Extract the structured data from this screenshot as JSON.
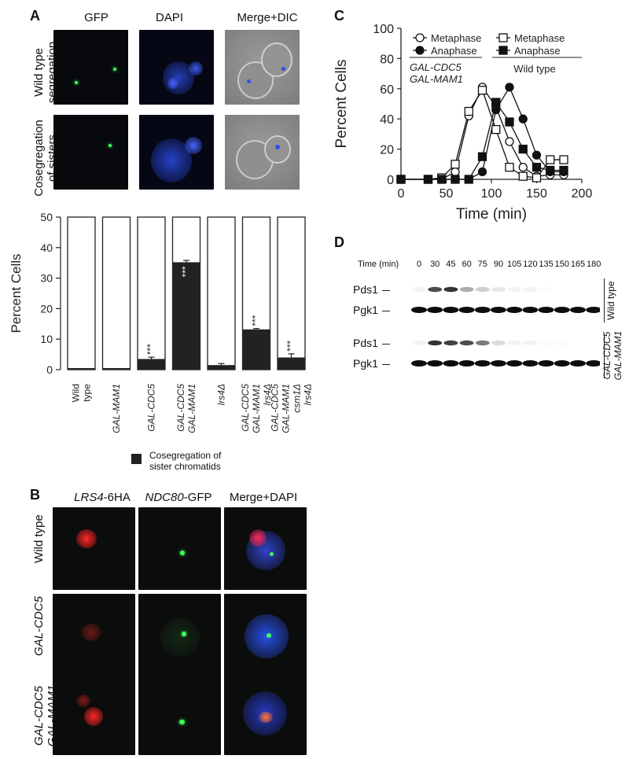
{
  "panel_a": {
    "label": "A",
    "columns": [
      "GFP",
      "DAPI",
      "Merge+DIC"
    ],
    "rows": [
      {
        "line1": "Wild type",
        "line2": "segregation"
      },
      {
        "line1": "Cosegregation",
        "line2": "of sisters"
      }
    ],
    "ylabel": "Percent Cells",
    "yticks": [
      "0",
      "10",
      "20",
      "30",
      "40",
      "50"
    ],
    "significance": "***",
    "legend_label_1": "Cosegregation of",
    "legend_label_2": "sister chromatids"
  },
  "panel_b": {
    "label": "B",
    "columns": [
      {
        "gene": "LRS4",
        "tag": "-6HA"
      },
      {
        "gene": "NDC80",
        "tag": "-GFP"
      },
      {
        "gene": "",
        "tag": "Merge+DAPI"
      }
    ],
    "rows": [
      {
        "line1": "Wild type",
        "line2": ""
      },
      {
        "line1": "GAL-CDC5",
        "line2": ""
      },
      {
        "line1": "GAL-CDC5",
        "line2": "GAL-MAM1"
      }
    ]
  },
  "panel_c": {
    "label": "C",
    "ylabel": "Percent Cells",
    "xlabel": "Time (min)",
    "legend": {
      "left_meta": "Metaphase",
      "left_ana": "Anaphase",
      "left_group_1": "GAL-CDC5",
      "left_group_2": "GAL-MAM1",
      "right_meta": "Metaphase",
      "right_ana": "Anaphase",
      "right_group": "Wild type"
    }
  },
  "panel_d": {
    "label": "D",
    "time_label": "Time (min)",
    "times": [
      "0",
      "30",
      "45",
      "60",
      "75",
      "90",
      "105",
      "120",
      "135",
      "150",
      "165",
      "180"
    ],
    "blot_labels": [
      "Pds1",
      "Pgk1",
      "Pds1",
      "Pgk1"
    ],
    "group_top": "Wild type",
    "group_bottom_1": "GAL-CDC5",
    "group_bottom_2": "GAL-MAM1"
  },
  "chart_data": [
    {
      "type": "bar",
      "stacked": true,
      "categories": [
        "Wild type",
        "GAL-MAM1",
        "GAL-CDC5",
        "GAL-CDC5 GAL-MAM1",
        "lrs4Δ",
        "GAL-CDC5 GAL-MAM1 lrs4Δ",
        "GAL-CDC5 GAL-MAM1 csm1Δ lrs4Δ"
      ],
      "series": [
        {
          "name": "Cosegregation of sister chromatids",
          "values": [
            0,
            0,
            3.5,
            35.2,
            1.5,
            13.2,
            4.0
          ]
        }
      ],
      "errors": [
        0,
        0,
        0.6,
        0.6,
        0.5,
        0.3,
        1.2
      ],
      "significant": [
        false,
        false,
        true,
        true,
        false,
        true,
        true
      ],
      "ylabel": "Percent Cells",
      "ylim": [
        0,
        50
      ],
      "yticks": [
        0,
        10,
        20,
        30,
        40,
        50
      ],
      "color_filled": "#222222",
      "color_total": "#ffffff"
    },
    {
      "type": "line",
      "xlabel": "Time (min)",
      "ylabel": "Percent Cells",
      "xlim": [
        0,
        200
      ],
      "ylim": [
        0,
        100
      ],
      "xticks": [
        0,
        50,
        100,
        150,
        200
      ],
      "yticks": [
        0,
        20,
        40,
        60,
        80,
        100
      ],
      "series": [
        {
          "name": "Metaphase",
          "group": "GAL-CDC5 GAL-MAM1",
          "marker": "circle-open",
          "x": [
            0,
            30,
            45,
            60,
            75,
            90,
            105,
            120,
            135,
            150,
            165,
            180
          ],
          "y": [
            0,
            0,
            0,
            5,
            42,
            61,
            48,
            25,
            8,
            2,
            3,
            3
          ]
        },
        {
          "name": "Anaphase",
          "group": "GAL-CDC5 GAL-MAM1",
          "marker": "circle-filled",
          "x": [
            0,
            30,
            45,
            60,
            75,
            90,
            105,
            120,
            135,
            150,
            165,
            180
          ],
          "y": [
            0,
            0,
            0,
            0,
            0,
            5,
            46,
            61,
            40,
            16,
            5,
            5
          ]
        },
        {
          "name": "Metaphase",
          "group": "Wild type",
          "marker": "square-open",
          "x": [
            0,
            30,
            45,
            60,
            75,
            90,
            105,
            120,
            135,
            150,
            165,
            180
          ],
          "y": [
            0,
            0,
            1,
            10,
            45,
            59,
            33,
            8,
            2,
            1,
            13,
            13
          ]
        },
        {
          "name": "Anaphase",
          "group": "Wild type",
          "marker": "square-filled",
          "x": [
            0,
            30,
            45,
            60,
            75,
            90,
            105,
            120,
            135,
            150,
            165,
            180
          ],
          "y": [
            0,
            0,
            0,
            0,
            0,
            15,
            51,
            38,
            20,
            8,
            6,
            6
          ]
        }
      ]
    }
  ]
}
